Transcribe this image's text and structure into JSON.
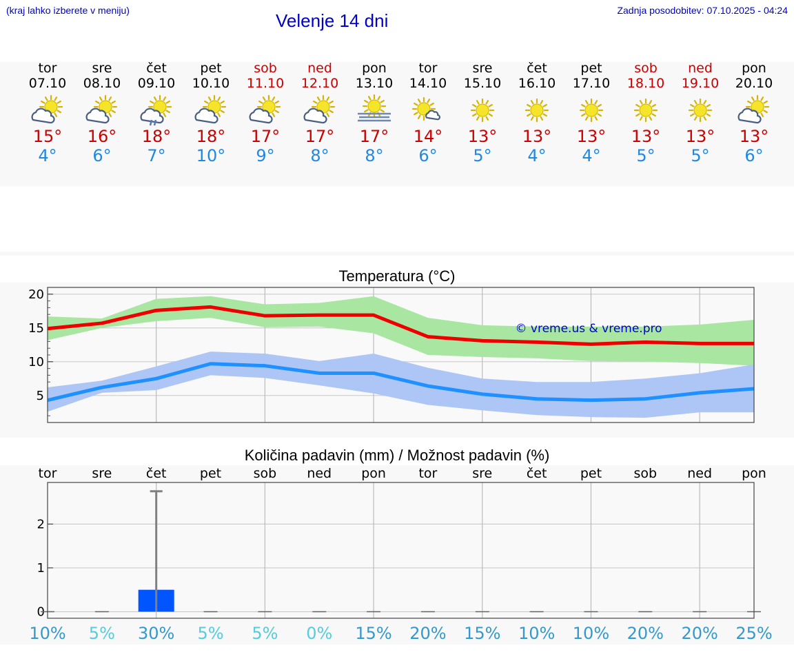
{
  "header": {
    "note": "(kraj lahko izberete v meniju)",
    "title": "Velenje 14 dni",
    "updated": "Zadnja posodobitev: 07.10.2025 - 04:24"
  },
  "days": [
    {
      "name": "tor",
      "date": "07.10",
      "weekend": false,
      "icon": "partly-cloudy-icon",
      "max": "15°",
      "min": "4°"
    },
    {
      "name": "sre",
      "date": "08.10",
      "weekend": false,
      "icon": "partly-cloudy-icon",
      "max": "16°",
      "min": "6°"
    },
    {
      "name": "čet",
      "date": "09.10",
      "weekend": false,
      "icon": "partly-cloudy-rain-icon",
      "max": "18°",
      "min": "7°"
    },
    {
      "name": "pet",
      "date": "10.10",
      "weekend": false,
      "icon": "partly-cloudy-icon",
      "max": "18°",
      "min": "10°"
    },
    {
      "name": "sob",
      "date": "11.10",
      "weekend": true,
      "icon": "partly-cloudy-icon",
      "max": "17°",
      "min": "9°"
    },
    {
      "name": "ned",
      "date": "12.10",
      "weekend": true,
      "icon": "partly-cloudy-icon",
      "max": "17°",
      "min": "8°"
    },
    {
      "name": "pon",
      "date": "13.10",
      "weekend": false,
      "icon": "sun-fog-icon",
      "max": "17°",
      "min": "8°"
    },
    {
      "name": "tor",
      "date": "14.10",
      "weekend": false,
      "icon": "sun-small-cloud-icon",
      "max": "14°",
      "min": "6°"
    },
    {
      "name": "sre",
      "date": "15.10",
      "weekend": false,
      "icon": "sun-icon",
      "max": "13°",
      "min": "5°"
    },
    {
      "name": "čet",
      "date": "16.10",
      "weekend": false,
      "icon": "sun-icon",
      "max": "13°",
      "min": "4°"
    },
    {
      "name": "pet",
      "date": "17.10",
      "weekend": false,
      "icon": "sun-icon",
      "max": "13°",
      "min": "4°"
    },
    {
      "name": "sob",
      "date": "18.10",
      "weekend": true,
      "icon": "sun-icon",
      "max": "13°",
      "min": "5°"
    },
    {
      "name": "ned",
      "date": "19.10",
      "weekend": true,
      "icon": "sun-icon",
      "max": "13°",
      "min": "5°"
    },
    {
      "name": "pon",
      "date": "20.10",
      "weekend": false,
      "icon": "partly-cloudy-icon",
      "max": "13°",
      "min": "6°"
    }
  ],
  "colors": {
    "max_line": "#ee0000",
    "max_band": "#a8e6a1",
    "min_line": "#1e90ff",
    "min_band": "#aec6f5",
    "bar": "#0055ff",
    "error_bar": "#808080",
    "title_blue": "#0000cc",
    "weekend": "#cc0000"
  },
  "chart_data": [
    {
      "type": "line",
      "title": "Temperatura (°C)",
      "watermark": "© vreme.us & vreme.pro",
      "x": [
        0,
        1,
        2,
        3,
        4,
        5,
        6,
        7,
        8,
        9,
        10,
        11,
        12,
        13
      ],
      "ylim": [
        1,
        21
      ],
      "yticks": [
        5,
        10,
        15,
        20
      ],
      "grid": true,
      "series": [
        {
          "name": "max",
          "values": [
            14.9,
            15.7,
            17.6,
            18.1,
            16.8,
            16.9,
            16.9,
            13.7,
            13.1,
            12.9,
            12.6,
            12.9,
            12.7,
            12.7
          ],
          "band_low": [
            13.2,
            15.0,
            16.0,
            16.5,
            15.1,
            15.2,
            14.2,
            11.0,
            10.7,
            10.5,
            10.1,
            10.0,
            9.8,
            9.4
          ],
          "band_high": [
            16.7,
            16.4,
            19.3,
            19.7,
            18.5,
            18.7,
            19.7,
            16.5,
            15.4,
            15.2,
            15.2,
            15.2,
            15.5,
            16.2
          ]
        },
        {
          "name": "min",
          "values": [
            4.3,
            6.2,
            7.5,
            9.7,
            9.4,
            8.3,
            8.3,
            6.4,
            5.2,
            4.5,
            4.3,
            4.5,
            5.4,
            6.0
          ],
          "band_low": [
            2.6,
            5.4,
            5.8,
            8.0,
            7.6,
            6.5,
            5.3,
            3.6,
            2.8,
            2.1,
            1.8,
            1.7,
            2.5,
            2.5
          ],
          "band_high": [
            6.2,
            7.2,
            9.3,
            11.5,
            11.2,
            10.1,
            11.2,
            9.1,
            7.5,
            7.0,
            7.0,
            7.5,
            8.3,
            9.6
          ]
        }
      ]
    },
    {
      "type": "bar",
      "title": "Količina padavin (mm) / Možnost padavin (%)",
      "categories": [
        "tor",
        "sre",
        "čet",
        "pet",
        "sob",
        "ned",
        "pon",
        "tor",
        "sre",
        "čet",
        "pet",
        "sob",
        "ned",
        "pon"
      ],
      "values": [
        0,
        0,
        0.5,
        0,
        0,
        0,
        0,
        0,
        0,
        0,
        0,
        0,
        0,
        0
      ],
      "error_high": [
        0,
        0,
        2.75,
        0,
        0,
        0,
        0,
        0,
        0,
        0,
        0,
        0,
        0,
        0
      ],
      "ylim": [
        -0.15,
        2.95
      ],
      "yticks": [
        0,
        1,
        2
      ],
      "probability": [
        "10%",
        "5%",
        "30%",
        "5%",
        "5%",
        "0%",
        "15%",
        "20%",
        "15%",
        "10%",
        "10%",
        "20%",
        "20%",
        "25%"
      ],
      "probability_colors": [
        "#3399cc",
        "#55ccdd",
        "#3399cc",
        "#55ccdd",
        "#55ccdd",
        "#55ccdd",
        "#3399cc",
        "#3399cc",
        "#3399cc",
        "#3399cc",
        "#3399cc",
        "#3399cc",
        "#3399cc",
        "#3399cc"
      ]
    }
  ]
}
